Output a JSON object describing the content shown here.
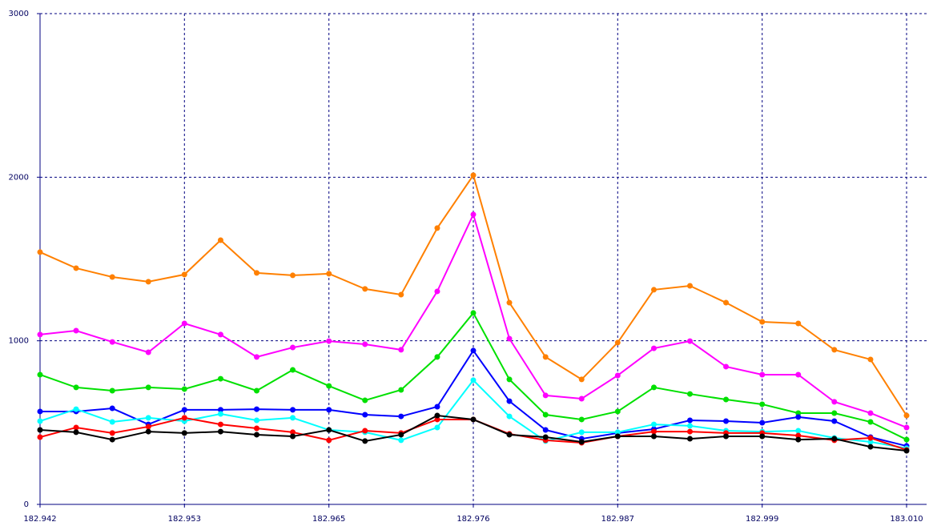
{
  "chart_data": {
    "type": "line",
    "x": [
      182.942,
      182.94483,
      182.94767,
      182.9505,
      182.95333,
      182.95617,
      182.959,
      182.96183,
      182.96467,
      182.9675,
      182.97033,
      182.97317,
      182.976,
      182.97883,
      182.98167,
      182.9845,
      182.98733,
      182.99017,
      182.993,
      182.99583,
      182.99867,
      183.0015,
      183.00433,
      183.00717,
      183.01
    ],
    "series": [
      {
        "color": "#ff8000",
        "values": [
          1542,
          1444,
          1390,
          1361,
          1405,
          1615,
          1415,
          1400,
          1410,
          1317,
          1282,
          1689,
          2012,
          1233,
          901,
          764,
          989,
          1312,
          1336,
          1233,
          1116,
          1106,
          945,
          886,
          543
        ]
      },
      {
        "color": "#ff00ff",
        "values": [
          1038,
          1062,
          993,
          930,
          1106,
          1038,
          901,
          959,
          998,
          979,
          945,
          1302,
          1772,
          1013,
          666,
          646,
          788,
          954,
          998,
          842,
          793,
          793,
          627,
          558,
          470
        ]
      },
      {
        "color": "#00e000",
        "values": [
          793,
          715,
          695,
          715,
          705,
          768,
          695,
          822,
          724,
          636,
          700,
          901,
          1170,
          764,
          548,
          519,
          568,
          715,
          675,
          641,
          612,
          558,
          558,
          504,
          396
        ]
      },
      {
        "color": "#0000ff",
        "values": [
          568,
          568,
          587,
          489,
          578,
          578,
          582,
          578,
          578,
          548,
          538,
          597,
          940,
          631,
          455,
          401,
          436,
          460,
          514,
          509,
          499,
          534,
          509,
          411,
          357
        ]
      },
      {
        "color": "#00ffff",
        "values": [
          509,
          582,
          504,
          529,
          509,
          553,
          514,
          529,
          455,
          441,
          392,
          470,
          759,
          538,
          387,
          441,
          441,
          489,
          480,
          450,
          445,
          450,
          406,
          382,
          343
        ]
      },
      {
        "color": "#ff0000",
        "values": [
          411,
          470,
          436,
          475,
          529,
          489,
          465,
          441,
          392,
          450,
          436,
          519,
          519,
          431,
          392,
          377,
          416,
          445,
          445,
          436,
          436,
          421,
          392,
          406,
          333
        ]
      },
      {
        "color": "#000000",
        "values": [
          455,
          441,
          396,
          445,
          436,
          445,
          426,
          416,
          455,
          387,
          426,
          543,
          519,
          426,
          411,
          382,
          416,
          416,
          401,
          416,
          416,
          396,
          401,
          352,
          328
        ]
      }
    ],
    "xlim": [
      182.942,
      183.01
    ],
    "xticks": [
      182.942,
      {
        "value": 182.95333,
        "label": "182.953"
      },
      {
        "value": 182.96467,
        "label": "182.965"
      },
      182.976,
      {
        "value": 182.98733,
        "label": "182.987"
      },
      {
        "value": 182.99867,
        "label": "182.999"
      },
      {
        "value": 183.01,
        "label": "183.010"
      }
    ],
    "ylim": [
      0,
      3000
    ],
    "yticks": [
      0,
      1000,
      2000,
      3000
    ],
    "grid": true
  }
}
